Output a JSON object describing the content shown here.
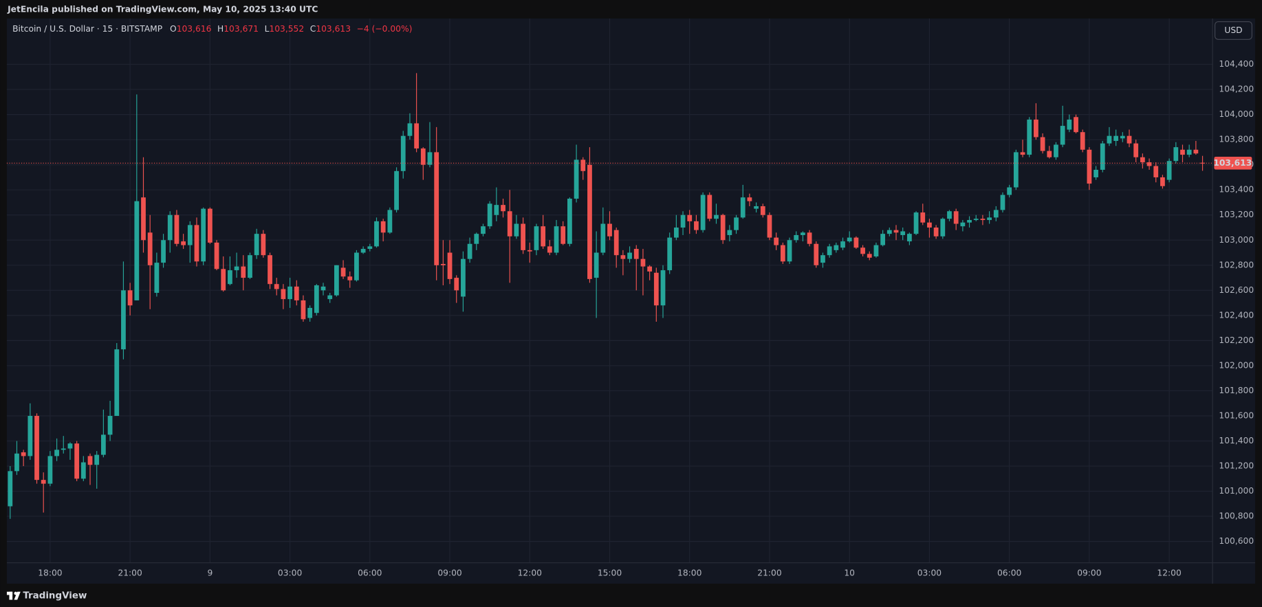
{
  "header": {
    "publisher": "JetEncila published on TradingView.com, May 10, 2025 13:40 UTC"
  },
  "legend": {
    "symbol": "Bitcoin / U.S. Dollar · 15 · BITSTAMP",
    "o_label": "O",
    "o": "103,616",
    "h_label": "H",
    "h": "103,671",
    "l_label": "L",
    "l": "103,552",
    "c_label": "C",
    "c": "103,613",
    "change": "−4 (−0.00%)"
  },
  "currency": "USD",
  "footer": "TradingView",
  "chart_data": {
    "type": "candlestick",
    "up_color": "#26a69a",
    "down_color": "#ef5350",
    "grid": true,
    "xlim": [
      -0.5,
      180.5
    ],
    "xticks": [
      {
        "value": 6,
        "label": "18:00"
      },
      {
        "value": 18,
        "label": "21:00"
      },
      {
        "value": 30,
        "label": "9"
      },
      {
        "value": 42,
        "label": "03:00"
      },
      {
        "value": 54,
        "label": "06:00"
      },
      {
        "value": 66,
        "label": "09:00"
      },
      {
        "value": 78,
        "label": "12:00"
      },
      {
        "value": 90,
        "label": "15:00"
      },
      {
        "value": 102,
        "label": "18:00"
      },
      {
        "value": 114,
        "label": "21:00"
      },
      {
        "value": 126,
        "label": "10"
      },
      {
        "value": 138,
        "label": "03:00"
      },
      {
        "value": 150,
        "label": "06:00"
      },
      {
        "value": 162,
        "label": "09:00"
      },
      {
        "value": 174,
        "label": "12:00"
      }
    ],
    "ylim": [
      100430,
      104765
    ],
    "yticks": [
      {
        "value": 100600,
        "label": "100,600"
      },
      {
        "value": 100800,
        "label": "100,800"
      },
      {
        "value": 101000,
        "label": "101,000"
      },
      {
        "value": 101200,
        "label": "101,200"
      },
      {
        "value": 101400,
        "label": "101,400"
      },
      {
        "value": 101600,
        "label": "101,600"
      },
      {
        "value": 101800,
        "label": "101,800"
      },
      {
        "value": 102000,
        "label": "102,000"
      },
      {
        "value": 102200,
        "label": "102,200"
      },
      {
        "value": 102400,
        "label": "102,400"
      },
      {
        "value": 102600,
        "label": "102,600"
      },
      {
        "value": 102800,
        "label": "102,800"
      },
      {
        "value": 103000,
        "label": "103,000"
      },
      {
        "value": 103200,
        "label": "103,200"
      },
      {
        "value": 103400,
        "label": "103,400"
      },
      {
        "value": 103600,
        "label": "103,600"
      },
      {
        "value": 103800,
        "label": "103,800"
      },
      {
        "value": 104000,
        "label": "104,000"
      },
      {
        "value": 104200,
        "label": "104,200"
      },
      {
        "value": 104400,
        "label": "104,400"
      }
    ],
    "last_price": {
      "value": 103613,
      "label": "103,613"
    },
    "open": [
      100880,
      101160,
      101310,
      101280,
      101600,
      101090,
      101060,
      101280,
      101330,
      101340,
      101380,
      101100,
      101280,
      101210,
      101290,
      101450,
      101600,
      102130,
      102600,
      102520,
      103340,
      103060,
      102580,
      102820,
      103000,
      103200,
      102990,
      102960,
      103120,
      102830,
      103250,
      102980,
      102770,
      102650,
      102760,
      102790,
      102700,
      102880,
      103050,
      102880,
      102650,
      102610,
      102530,
      102630,
      102520,
      102380,
      102420,
      102600,
      102530,
      102560,
      102780,
      102710,
      102680,
      102900,
      102930,
      102950,
      103150,
      103060,
      103240,
      103550,
      103830,
      103930,
      103730,
      103600,
      103700,
      102810,
      102900,
      102700,
      102550,
      102850,
      102970,
      103050,
      103110,
      103200,
      103280,
      103230,
      103030,
      103130,
      102920,
      102920,
      103110,
      102950,
      102900,
      103110,
      102970,
      103330,
      103640,
      103600,
      102700,
      102900,
      103130,
      103080,
      102880,
      102850,
      102930,
      102850,
      102790,
      102740,
      102480,
      102760,
      103020,
      103100,
      103200,
      103150,
      103080,
      103360,
      103170,
      103200,
      103040,
      103080,
      103180,
      103340,
      103250,
      103270,
      103200,
      103020,
      102960,
      102830,
      103000,
      103040,
      103060,
      102970,
      102820,
      102880,
      102920,
      102940,
      102990,
      103020,
      102940,
      102890,
      102870,
      102960,
      103050,
      103080,
      103040,
      102990,
      103050,
      103220,
      103140,
      103100,
      103030,
      103170,
      103230,
      103110,
      103140,
      103160,
      103170,
      103160,
      103180,
      103240,
      103360,
      103420,
      103700,
      103680,
      103960,
      103820,
      103710,
      103660,
      103760,
      103880,
      103980,
      103860,
      103720,
      103500,
      103560,
      103770,
      103790,
      103810,
      103830,
      103770,
      103660,
      103620,
      103590,
      103500,
      103480,
      103630,
      103720,
      103680,
      103720,
      103616
    ],
    "high": [
      101200,
      101400,
      101330,
      101700,
      101620,
      101150,
      101320,
      101420,
      101440,
      101390,
      101400,
      101280,
      101300,
      101320,
      101650,
      101720,
      102180,
      102830,
      102660,
      104160,
      103660,
      103200,
      102900,
      103050,
      103230,
      103240,
      103050,
      103150,
      103180,
      103260,
      103260,
      103000,
      102870,
      102870,
      102900,
      102880,
      102900,
      103090,
      103080,
      102900,
      102700,
      102650,
      102700,
      102680,
      102560,
      102480,
      102650,
      102660,
      102580,
      102800,
      102840,
      102750,
      102920,
      102950,
      102970,
      103180,
      103170,
      103260,
      103580,
      103870,
      104010,
      104330,
      103740,
      103940,
      103900,
      103000,
      103000,
      102720,
      102910,
      103020,
      103060,
      103130,
      103310,
      103420,
      103330,
      103400,
      103200,
      103180,
      102980,
      103130,
      103200,
      103000,
      103160,
      103150,
      103340,
      103760,
      103660,
      103740,
      103070,
      103260,
      103230,
      103100,
      102920,
      102950,
      102960,
      102930,
      102800,
      102780,
      102800,
      103060,
      103200,
      103230,
      103240,
      103200,
      103380,
      103380,
      103290,
      103210,
      103120,
      103200,
      103440,
      103370,
      103300,
      103290,
      103220,
      103060,
      102980,
      103020,
      103070,
      103070,
      103080,
      102990,
      102900,
      102970,
      102980,
      103020,
      103070,
      103030,
      102960,
      102910,
      102980,
      103080,
      103100,
      103120,
      103100,
      103060,
      103230,
      103290,
      103170,
      103120,
      103180,
      103240,
      103250,
      103160,
      103190,
      103200,
      103200,
      103230,
      103270,
      103380,
      103440,
      103720,
      103800,
      103980,
      104090,
      103850,
      103750,
      103780,
      104070,
      104000,
      104000,
      103880,
      103740,
      103590,
      103790,
      103900,
      103880,
      103860,
      103880,
      103800,
      103690,
      103650,
      103620,
      103520,
      103650,
      103780,
      103760,
      103760,
      103790,
      103671
    ],
    "low": [
      100780,
      101130,
      101200,
      101250,
      101060,
      100830,
      101040,
      101240,
      101300,
      101250,
      101080,
      101080,
      101050,
      101020,
      101270,
      101400,
      101600,
      102050,
      102400,
      102520,
      102900,
      102450,
      102550,
      102780,
      102900,
      102950,
      102930,
      102820,
      102790,
      102800,
      102970,
      102760,
      102590,
      102640,
      102700,
      102600,
      102690,
      102850,
      102860,
      102610,
      102560,
      102450,
      102460,
      102480,
      102350,
      102350,
      102400,
      102560,
      102500,
      102550,
      102690,
      102620,
      102670,
      102890,
      102910,
      102940,
      102990,
      103050,
      103220,
      103490,
      103800,
      103700,
      103480,
      103580,
      102680,
      102640,
      102650,
      102500,
      102430,
      102820,
      102920,
      103030,
      103090,
      103150,
      103180,
      102660,
      103010,
      102890,
      102820,
      102880,
      102930,
      102880,
      102880,
      102960,
      102950,
      103300,
      103480,
      102660,
      102380,
      102880,
      103000,
      102780,
      102720,
      102820,
      102600,
      102560,
      102680,
      102350,
      102380,
      102730,
      103000,
      103040,
      103050,
      103050,
      103060,
      103150,
      103130,
      102970,
      102990,
      103050,
      103170,
      103270,
      103220,
      103180,
      103000,
      102920,
      102810,
      102810,
      102980,
      102990,
      102950,
      102780,
      102780,
      102860,
      102900,
      102920,
      102980,
      102930,
      102870,
      102840,
      102860,
      102950,
      103030,
      103000,
      103000,
      102960,
      103040,
      103120,
      103020,
      103010,
      103010,
      103150,
      103080,
      103070,
      103100,
      103150,
      103120,
      103130,
      103150,
      103220,
      103340,
      103400,
      103660,
      103660,
      103800,
      103690,
      103650,
      103640,
      103740,
      103860,
      103850,
      103700,
      103400,
      103480,
      103540,
      103750,
      103750,
      103780,
      103740,
      103620,
      103570,
      103560,
      103460,
      103410,
      103460,
      103610,
      103620,
      103660,
      103680,
      103552
    ],
    "close": [
      101160,
      101300,
      101280,
      101600,
      101090,
      101060,
      101280,
      101330,
      101340,
      101380,
      101100,
      101230,
      101210,
      101290,
      101450,
      101600,
      102130,
      102600,
      102480,
      103310,
      103000,
      102800,
      102820,
      103000,
      103200,
      102970,
      102960,
      103120,
      102830,
      103250,
      102980,
      102770,
      102600,
      102760,
      102790,
      102700,
      102880,
      103050,
      102880,
      102650,
      102610,
      102530,
      102630,
      102520,
      102370,
      102460,
      102640,
      102630,
      102560,
      102800,
      102710,
      102680,
      102900,
      102930,
      102950,
      103150,
      103060,
      103240,
      103550,
      103830,
      103930,
      103730,
      103600,
      103700,
      102800,
      102800,
      102690,
      102600,
      102850,
      102970,
      103050,
      103110,
      103290,
      103280,
      103230,
      103030,
      103130,
      102920,
      102910,
      103110,
      102950,
      102900,
      103110,
      102970,
      103330,
      103640,
      103550,
      102690,
      102900,
      103130,
      103030,
      102880,
      102850,
      102900,
      102850,
      102790,
      102750,
      102480,
      102760,
      103020,
      103100,
      103200,
      103150,
      103080,
      103360,
      103170,
      103200,
      103000,
      103080,
      103180,
      103340,
      103310,
      103270,
      103200,
      103020,
      102960,
      102830,
      103000,
      103040,
      103060,
      102970,
      102800,
      102880,
      102950,
      102960,
      102990,
      103020,
      102940,
      102890,
      102860,
      102960,
      103050,
      103080,
      103060,
      103070,
      103050,
      103220,
      103140,
      103100,
      103030,
      103170,
      103230,
      103130,
      103140,
      103160,
      103170,
      103160,
      103180,
      103240,
      103360,
      103420,
      103700,
      103680,
      103960,
      103820,
      103710,
      103660,
      103760,
      103910,
      103960,
      103860,
      103720,
      103450,
      103560,
      103770,
      103830,
      103830,
      103830,
      103770,
      103660,
      103620,
      103590,
      103500,
      103430,
      103630,
      103740,
      103680,
      103720,
      103690,
      103613
    ]
  }
}
